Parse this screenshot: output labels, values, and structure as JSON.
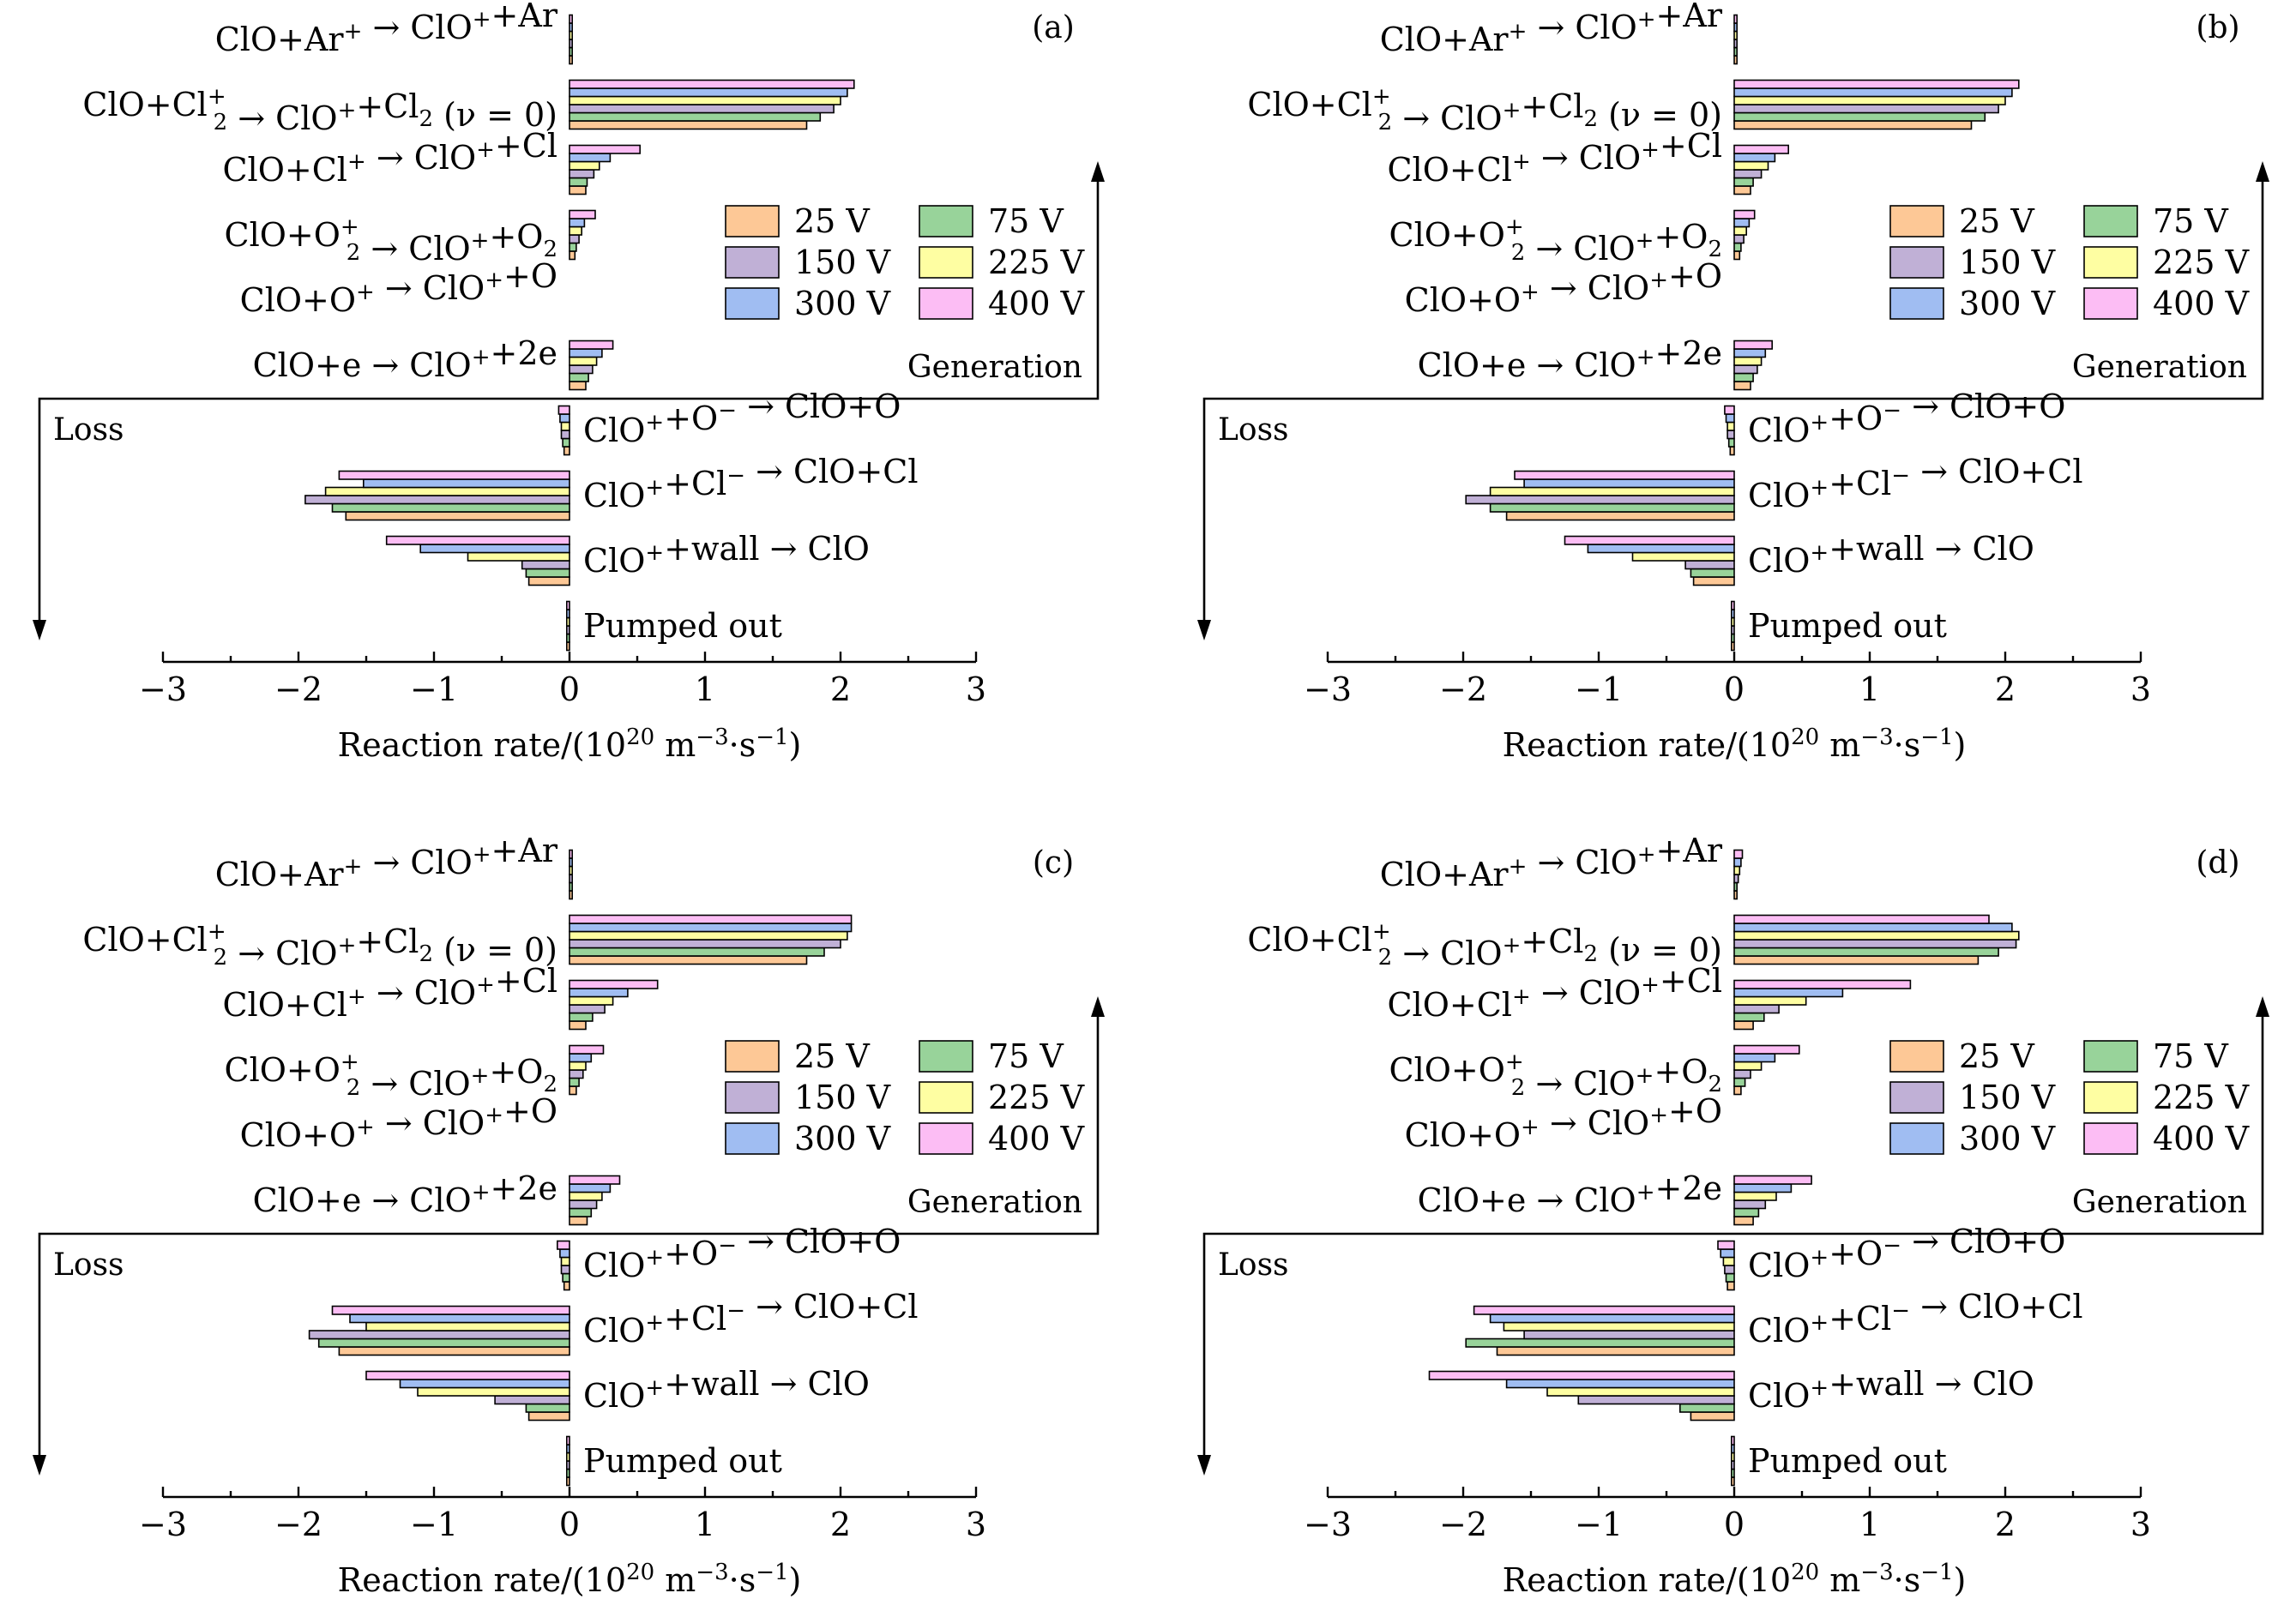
{
  "chart_data": [
    {
      "type": "bar",
      "orientation": "horizontal",
      "panel_label": "(a)",
      "series_order": [
        "25 V",
        "75 V",
        "150 V",
        "225 V",
        "300 V",
        "400 V"
      ],
      "series_values": [
        [
          0.02,
          1.75,
          0.12,
          0.04,
          0.0,
          0.12,
          -0.04,
          -1.65,
          -0.3,
          -0.02
        ],
        [
          0.02,
          1.85,
          0.13,
          0.05,
          0.0,
          0.14,
          -0.05,
          -1.75,
          -0.32,
          -0.02
        ],
        [
          0.02,
          1.95,
          0.18,
          0.07,
          0.0,
          0.17,
          -0.06,
          -1.95,
          -0.35,
          -0.02
        ],
        [
          0.02,
          2.0,
          0.22,
          0.09,
          0.0,
          0.2,
          -0.06,
          -1.8,
          -0.75,
          -0.02
        ],
        [
          0.02,
          2.05,
          0.3,
          0.11,
          0.0,
          0.24,
          -0.07,
          -1.52,
          -1.1,
          -0.02
        ],
        [
          0.02,
          2.1,
          0.52,
          0.19,
          0.0,
          0.32,
          -0.08,
          -1.7,
          -1.35,
          -0.02
        ]
      ],
      "xlim": [
        -3,
        3
      ]
    },
    {
      "type": "bar",
      "orientation": "horizontal",
      "panel_label": "(b)",
      "series_order": [
        "25 V",
        "75 V",
        "150 V",
        "225 V",
        "300 V",
        "400 V"
      ],
      "series_values": [
        [
          0.02,
          1.75,
          0.12,
          0.04,
          0.0,
          0.12,
          -0.03,
          -1.68,
          -0.3,
          -0.02
        ],
        [
          0.02,
          1.85,
          0.14,
          0.05,
          0.0,
          0.14,
          -0.04,
          -1.8,
          -0.32,
          -0.02
        ],
        [
          0.02,
          1.95,
          0.2,
          0.07,
          0.0,
          0.17,
          -0.05,
          -1.98,
          -0.36,
          -0.02
        ],
        [
          0.02,
          2.0,
          0.25,
          0.09,
          0.0,
          0.2,
          -0.05,
          -1.8,
          -0.75,
          -0.02
        ],
        [
          0.02,
          2.05,
          0.3,
          0.11,
          0.0,
          0.23,
          -0.06,
          -1.55,
          -1.08,
          -0.02
        ],
        [
          0.02,
          2.1,
          0.4,
          0.15,
          0.0,
          0.28,
          -0.07,
          -1.62,
          -1.25,
          -0.02
        ]
      ],
      "xlim": [
        -3,
        3
      ]
    },
    {
      "type": "bar",
      "orientation": "horizontal",
      "panel_label": "(c)",
      "series_order": [
        "25 V",
        "75 V",
        "150 V",
        "225 V",
        "300 V",
        "400 V"
      ],
      "series_values": [
        [
          0.02,
          1.75,
          0.12,
          0.05,
          0.0,
          0.13,
          -0.04,
          -1.7,
          -0.3,
          -0.02
        ],
        [
          0.02,
          1.88,
          0.17,
          0.07,
          0.0,
          0.16,
          -0.05,
          -1.85,
          -0.32,
          -0.02
        ],
        [
          0.02,
          2.0,
          0.26,
          0.1,
          0.0,
          0.2,
          -0.06,
          -1.92,
          -0.55,
          -0.02
        ],
        [
          0.02,
          2.05,
          0.32,
          0.12,
          0.0,
          0.24,
          -0.06,
          -1.5,
          -1.12,
          -0.02
        ],
        [
          0.02,
          2.08,
          0.43,
          0.16,
          0.0,
          0.3,
          -0.07,
          -1.62,
          -1.25,
          -0.02
        ],
        [
          0.02,
          2.08,
          0.65,
          0.25,
          0.0,
          0.37,
          -0.09,
          -1.75,
          -1.5,
          -0.02
        ]
      ],
      "xlim": [
        -3,
        3
      ]
    },
    {
      "type": "bar",
      "orientation": "horizontal",
      "panel_label": "(d)",
      "series_order": [
        "25 V",
        "75 V",
        "150 V",
        "225 V",
        "300 V",
        "400 V"
      ],
      "series_values": [
        [
          0.02,
          1.8,
          0.14,
          0.05,
          0.0,
          0.14,
          -0.05,
          -1.75,
          -0.32,
          -0.02
        ],
        [
          0.02,
          1.95,
          0.22,
          0.08,
          0.0,
          0.18,
          -0.06,
          -1.98,
          -0.4,
          -0.02
        ],
        [
          0.03,
          2.08,
          0.33,
          0.12,
          0.0,
          0.23,
          -0.07,
          -1.55,
          -1.15,
          -0.02
        ],
        [
          0.04,
          2.1,
          0.53,
          0.2,
          0.0,
          0.31,
          -0.08,
          -1.7,
          -1.38,
          -0.02
        ],
        [
          0.05,
          2.05,
          0.8,
          0.3,
          0.0,
          0.42,
          -0.1,
          -1.8,
          -1.68,
          -0.02
        ],
        [
          0.06,
          1.88,
          1.3,
          0.48,
          0.0,
          0.57,
          -0.12,
          -1.92,
          -2.25,
          -0.02
        ]
      ],
      "xlim": [
        -3,
        3
      ]
    }
  ],
  "shared": {
    "reactions": [
      {
        "main": "ClO+Ar",
        "sup1": "+",
        "mid": " → ClO",
        "sup2": "+",
        "end": "+Ar"
      },
      {
        "main": "ClO+Cl",
        "sub": "2",
        "sup1": "+",
        "mid": " → ClO",
        "sup2": "+",
        "end": "+Cl",
        "sub2": "2",
        "tail": " (ν = 0)"
      },
      {
        "main": "ClO+Cl",
        "sup1": "+",
        "mid": " → ClO",
        "sup2": "+",
        "end": "+Cl"
      },
      {
        "main": "ClO+O",
        "sub": "2",
        "sup1": "+",
        "mid": " → ClO",
        "sup2": "+",
        "end": "+O",
        "sub2": "2"
      },
      {
        "main": "ClO+O",
        "sup1": "+",
        "mid": " → ClO",
        "sup2": "+",
        "end": "+O"
      },
      {
        "main": "ClO+e → ClO",
        "sup1": "+",
        "mid": "+2e"
      }
    ],
    "loss_reactions": [
      {
        "main": "ClO",
        "sup1": "+",
        "mid": "+O",
        "sup2": "−",
        "end": " → ClO+O"
      },
      {
        "main": "ClO",
        "sup1": "+",
        "mid": "+Cl",
        "sup2": "−",
        "end": " → ClO+Cl"
      },
      {
        "main": "ClO",
        "sup1": "+",
        "mid": "+wall → ClO"
      },
      {
        "main": "Pumped out"
      }
    ],
    "categories": [
      "ClO+Ar+ → ClO++Ar",
      "ClO+Cl2+ → ClO++Cl2 (ν = 0)",
      "ClO+Cl+ → ClO++Cl",
      "ClO+O2+ → ClO++O2",
      "ClO+O+ → ClO++O",
      "ClO+e → ClO++2e",
      "ClO++O− → ClO+O",
      "ClO++Cl− → ClO+Cl",
      "ClO++wall → ClO",
      "Pumped out"
    ],
    "xticks": [
      "−3",
      "−2",
      "−1",
      "0",
      "1",
      "2",
      "3"
    ],
    "xlabel": {
      "pre": "Reaction rate/(10",
      "exp1": "20",
      "mid": " m",
      "exp2": "−3",
      "dot": "·s",
      "exp3": "−1",
      "post": ")"
    },
    "generation_label": "Generation",
    "loss_label": "Loss",
    "legend": [
      {
        "name": "25 V",
        "color": "#FDC896"
      },
      {
        "name": "75 V",
        "color": "#98D39A"
      },
      {
        "name": "150 V",
        "color": "#C0B0D6"
      },
      {
        "name": "225 V",
        "color": "#FEFEA2"
      },
      {
        "name": "300 V",
        "color": "#A0BDF2"
      },
      {
        "name": "400 V",
        "color": "#FCBDF4"
      }
    ]
  }
}
